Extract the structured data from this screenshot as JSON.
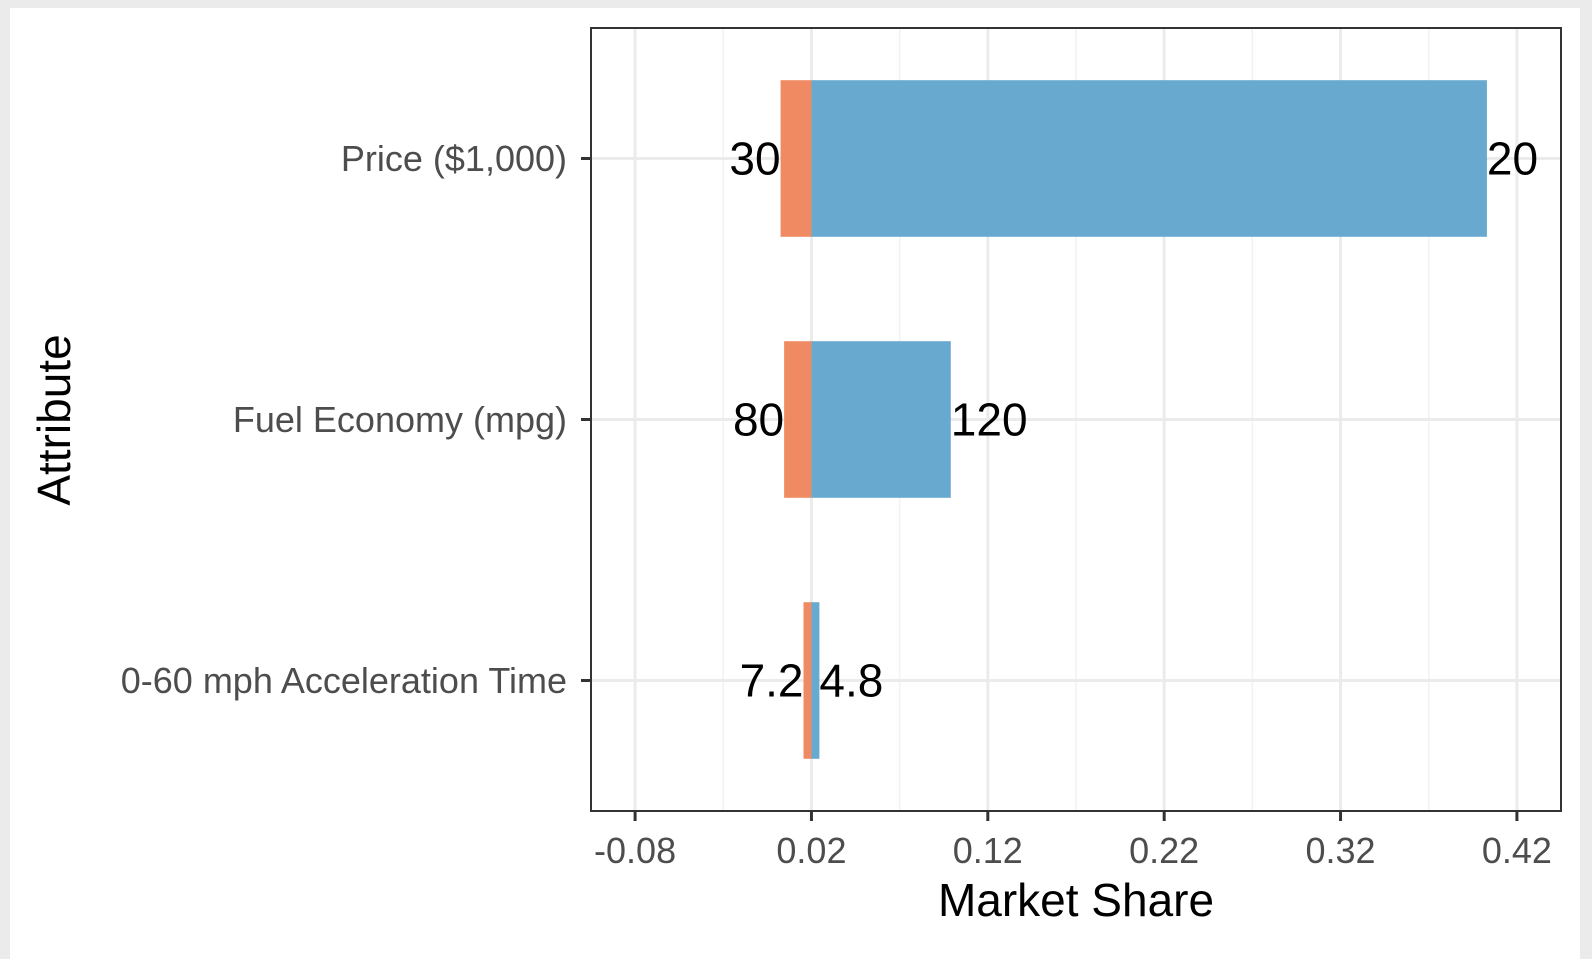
{
  "chart_data": {
    "type": "bar",
    "orientation": "horizontal",
    "xlabel": "Market Share",
    "ylabel": "Attribute",
    "xlim": [
      -0.105,
      0.445
    ],
    "xticks": [
      "-0.08",
      "0.02",
      "0.12",
      "0.22",
      "0.32",
      "0.42"
    ],
    "xtick_values": [
      -0.08,
      0.02,
      0.12,
      0.22,
      0.32,
      0.42
    ],
    "baseline": 0.02,
    "grid": true,
    "legend": "none",
    "colors": {
      "low": "#ef8a62",
      "high": "#67a9cf"
    },
    "categories": [
      "Price ($1,000)",
      "Fuel Economy (mpg)",
      "0-60 mph Acceleration Time"
    ],
    "bars": [
      {
        "category": "Price ($1,000)",
        "low_value": 0.0025,
        "high_value": 0.403,
        "low_label": "30",
        "high_label": "20"
      },
      {
        "category": "Fuel Economy (mpg)",
        "low_value": 0.0045,
        "high_value": 0.099,
        "low_label": "80",
        "high_label": "120"
      },
      {
        "category": "0-60 mph Acceleration Time",
        "low_value": 0.0155,
        "high_value": 0.0245,
        "low_label": "7.2",
        "high_label": "4.8"
      }
    ]
  }
}
